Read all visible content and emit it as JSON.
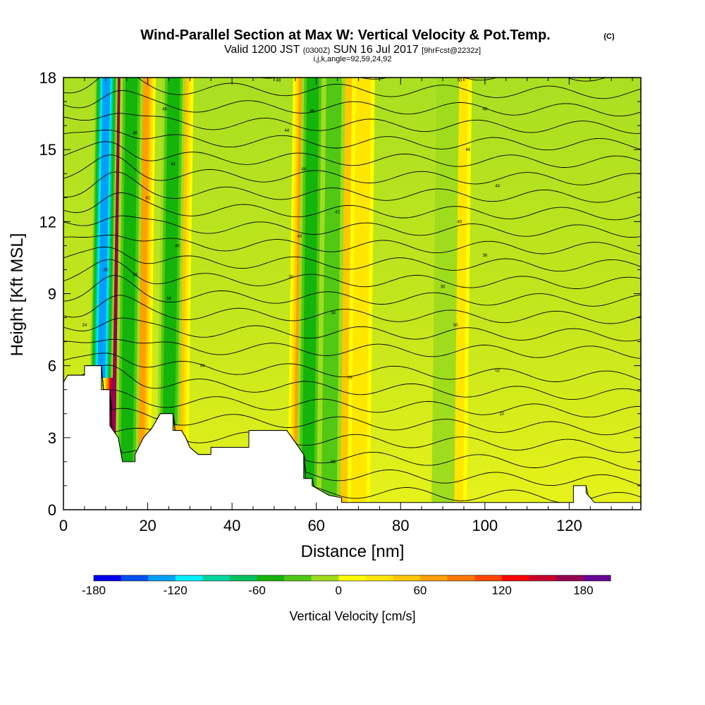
{
  "chart_data": {
    "type": "heatmap",
    "title": "Wind-Parallel Section at Max W: Vertical Velocity & Pot.Temp.",
    "title_mark": "(C)",
    "subtitle_main": "Valid 1200 JST",
    "subtitle_utc": "(0300Z)",
    "subtitle_date": "SUN 16 Jul 2017",
    "subtitle_fcst": "[9hrFcst@2232z]",
    "subtitle2": "i,j,k,angle=92,59,24,92",
    "xlabel": "Distance [nm]",
    "ylabel": "Height [Kft MSL]",
    "xlim": [
      0,
      137
    ],
    "ylim": [
      0,
      18
    ],
    "x_ticks": [
      0,
      20,
      40,
      60,
      80,
      100,
      120
    ],
    "x_tick_labels": [
      "0",
      "20",
      "40",
      "60",
      "80",
      "100",
      "120"
    ],
    "y_ticks": [
      0,
      3,
      6,
      9,
      12,
      15,
      18
    ],
    "y_tick_labels": [
      "0",
      "3",
      "6",
      "9",
      "12",
      "15",
      "18"
    ],
    "colorbar": {
      "label": "Vertical Velocity [cm/s]",
      "min": -180,
      "max": 200,
      "step": 20,
      "tick_values": [
        -180,
        -120,
        -60,
        0,
        60,
        120,
        180
      ],
      "tick_labels": [
        "-180",
        "-120",
        "-60",
        "0",
        "60",
        "120",
        "180"
      ],
      "colors": [
        "#0000ee",
        "#0050f0",
        "#00a0f8",
        "#00f0ff",
        "#00d8a0",
        "#00c060",
        "#14b40a",
        "#50c814",
        "#a0dc1e",
        "#ffff00",
        "#ffe600",
        "#ffc800",
        "#ffa000",
        "#ff7800",
        "#ff4600",
        "#ff0000",
        "#c80028",
        "#960050",
        "#640096"
      ]
    },
    "updraft_bands_approx": [
      {
        "x": 12,
        "w_max": 180
      },
      {
        "x": 18,
        "w_max": 80
      },
      {
        "x": 27,
        "w_max": 60
      },
      {
        "x": 56,
        "w_max": 80
      },
      {
        "x": 66,
        "w_max": 60
      },
      {
        "x": 70,
        "w_max": 40
      },
      {
        "x": 93,
        "w_max": 40
      }
    ],
    "downdraft_bands_approx": [
      {
        "x": 9,
        "w_min": -150
      },
      {
        "x": 15,
        "w_min": -60
      },
      {
        "x": 25,
        "w_min": -60
      },
      {
        "x": 58,
        "w_min": -60
      },
      {
        "x": 63,
        "w_min": -40
      },
      {
        "x": 90,
        "w_min": -20
      }
    ],
    "terrain_profile": [
      [
        0,
        5.3
      ],
      [
        1,
        5.6
      ],
      [
        5,
        5.6
      ],
      [
        5,
        6.0
      ],
      [
        9,
        6.0
      ],
      [
        9,
        5.0
      ],
      [
        11,
        5.0
      ],
      [
        11,
        3.5
      ],
      [
        13,
        3.0
      ],
      [
        14,
        2.0
      ],
      [
        17,
        2.0
      ],
      [
        17,
        2.3
      ],
      [
        19,
        3.0
      ],
      [
        21,
        3.4
      ],
      [
        23,
        4.0
      ],
      [
        26,
        4.0
      ],
      [
        26,
        3.3
      ],
      [
        28,
        3.3
      ],
      [
        29,
        3.0
      ],
      [
        30,
        2.6
      ],
      [
        32,
        2.3
      ],
      [
        35,
        2.3
      ],
      [
        35,
        2.6
      ],
      [
        44,
        2.6
      ],
      [
        44,
        3.3
      ],
      [
        53,
        3.3
      ],
      [
        55,
        2.8
      ],
      [
        57,
        2.3
      ],
      [
        57,
        1.3
      ],
      [
        59,
        1.3
      ],
      [
        59,
        1.0
      ],
      [
        61,
        0.8
      ],
      [
        63,
        0.6
      ],
      [
        66,
        0.5
      ],
      [
        66,
        0.3
      ],
      [
        70,
        0.3
      ],
      [
        70,
        0.3
      ],
      [
        121,
        0.3
      ],
      [
        121,
        1.0
      ],
      [
        124,
        1.0
      ],
      [
        124,
        0.7
      ],
      [
        125,
        0.5
      ],
      [
        126,
        0.3
      ],
      [
        137,
        0.3
      ]
    ],
    "theta_contours": {
      "levels": [
        302,
        304,
        306,
        308,
        310,
        312,
        314,
        316,
        318,
        320,
        322,
        324,
        326,
        328,
        330,
        332,
        334,
        336,
        338,
        340,
        342,
        344,
        346,
        348,
        350
      ],
      "labels_approx": [
        {
          "x": 10,
          "y": 10.0,
          "text": "36"
        },
        {
          "x": 5,
          "y": 7.7,
          "text": "24"
        },
        {
          "x": 33,
          "y": 6.0,
          "text": "04"
        },
        {
          "x": 68,
          "y": 5.5,
          "text": "06"
        },
        {
          "x": 64,
          "y": 2.0,
          "text": "02"
        },
        {
          "x": 103,
          "y": 5.8,
          "text": "02"
        },
        {
          "x": 104,
          "y": 4.0,
          "text": "10"
        },
        {
          "x": 93,
          "y": 7.7,
          "text": "30"
        },
        {
          "x": 64,
          "y": 8.2,
          "text": "34"
        },
        {
          "x": 54,
          "y": 9.7,
          "text": "30"
        },
        {
          "x": 90,
          "y": 9.3,
          "text": "30"
        },
        {
          "x": 17,
          "y": 9.8,
          "text": "36"
        },
        {
          "x": 25,
          "y": 8.8,
          "text": "38"
        },
        {
          "x": 27,
          "y": 11.0,
          "text": "40"
        },
        {
          "x": 20,
          "y": 13.0,
          "text": "42"
        },
        {
          "x": 26,
          "y": 14.4,
          "text": "44"
        },
        {
          "x": 17,
          "y": 15.7,
          "text": "46"
        },
        {
          "x": 24,
          "y": 16.7,
          "text": "48"
        },
        {
          "x": 51,
          "y": 17.9,
          "text": "48"
        },
        {
          "x": 59,
          "y": 16.6,
          "text": "46"
        },
        {
          "x": 53,
          "y": 15.8,
          "text": "44"
        },
        {
          "x": 57,
          "y": 14.2,
          "text": "44"
        },
        {
          "x": 65,
          "y": 12.4,
          "text": "42"
        },
        {
          "x": 56,
          "y": 11.4,
          "text": "40"
        },
        {
          "x": 94,
          "y": 17.9,
          "text": "50"
        },
        {
          "x": 100,
          "y": 16.7,
          "text": "48"
        },
        {
          "x": 96,
          "y": 15.0,
          "text": "46"
        },
        {
          "x": 103,
          "y": 13.5,
          "text": "44"
        },
        {
          "x": 94,
          "y": 12.0,
          "text": "40"
        },
        {
          "x": 100,
          "y": 10.6,
          "text": "36"
        }
      ]
    }
  }
}
